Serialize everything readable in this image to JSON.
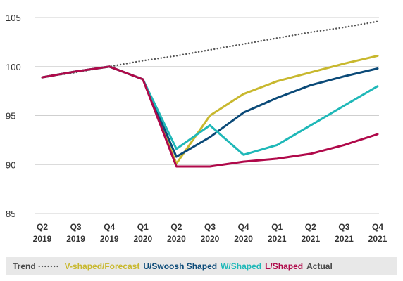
{
  "chart_data": {
    "type": "line",
    "categories": [
      [
        "Q2",
        "2019"
      ],
      [
        "Q3",
        "2019"
      ],
      [
        "Q4",
        "2019"
      ],
      [
        "Q1",
        "2020"
      ],
      [
        "Q2",
        "2020"
      ],
      [
        "Q3",
        "2020"
      ],
      [
        "Q4",
        "2020"
      ],
      [
        "Q1",
        "2021"
      ],
      [
        "Q2",
        "2021"
      ],
      [
        "Q3",
        "2021"
      ],
      [
        "Q4",
        "2021"
      ]
    ],
    "ylim": [
      85,
      105
    ],
    "yticks": [
      85,
      90,
      95,
      100,
      105
    ],
    "grid": "horizontal",
    "legend_position": "bottom",
    "series": [
      {
        "name": "Trend",
        "style": "dotted",
        "color": "#555555",
        "values": [
          98.9,
          99.4,
          100.0,
          100.6,
          101.1,
          101.7,
          102.3,
          102.9,
          103.5,
          104.0,
          104.6
        ]
      },
      {
        "name": "V-shaped/Forecast",
        "style": "solid",
        "color": "#c8b82e",
        "values": [
          98.9,
          99.5,
          100.0,
          98.7,
          90.1,
          95.0,
          97.2,
          98.5,
          99.4,
          100.3,
          101.1
        ]
      },
      {
        "name": "U/Swoosh Shaped",
        "style": "solid",
        "color": "#0b4a78",
        "values": [
          98.9,
          99.5,
          100.0,
          98.7,
          90.8,
          92.8,
          95.3,
          96.8,
          98.1,
          99.0,
          99.8
        ]
      },
      {
        "name": "W/Shaped",
        "style": "solid",
        "color": "#1fb8b8",
        "values": [
          98.9,
          99.5,
          100.0,
          98.7,
          91.6,
          94.0,
          91.0,
          92.0,
          94.0,
          96.0,
          98.0
        ]
      },
      {
        "name": "L/Shaped",
        "style": "solid",
        "color": "#b0094a",
        "values": [
          98.9,
          99.5,
          100.0,
          98.7,
          89.8,
          89.8,
          90.3,
          90.6,
          91.1,
          92.0,
          93.1
        ]
      }
    ],
    "legend": {
      "label_color": "#4a4a4a",
      "background": "#e8e8e8",
      "trailing_text": "Actual"
    }
  }
}
